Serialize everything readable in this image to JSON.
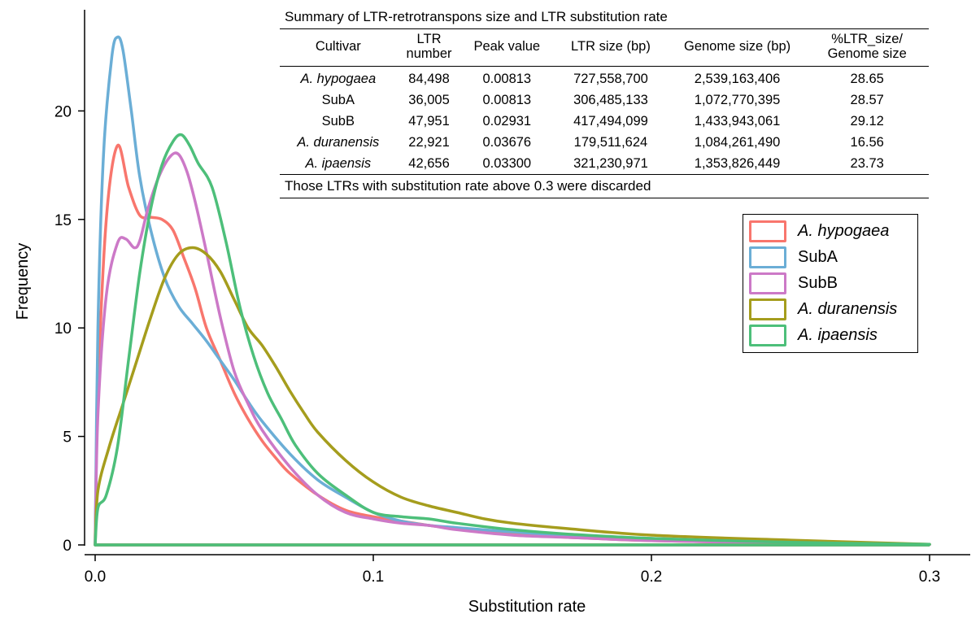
{
  "chart_data": {
    "type": "line",
    "xlabel": "Substitution rate",
    "ylabel": "Frequency",
    "xlim": [
      0,
      0.3
    ],
    "ylim": [
      0,
      25
    ],
    "x_ticks": [
      0.0,
      0.1,
      0.2,
      0.3
    ],
    "x_tick_labels": [
      "0.0",
      "0.1",
      "0.2",
      "0.3"
    ],
    "y_ticks": [
      0,
      5,
      10,
      15,
      20
    ],
    "y_tick_labels": [
      "0",
      "5",
      "10",
      "15",
      "20"
    ],
    "grid": false,
    "legend_position": "right",
    "series": [
      {
        "name": "A. hypogaea",
        "italic": true,
        "color": "#f8766d",
        "x": [
          0,
          0.001,
          0.004,
          0.008,
          0.012,
          0.016,
          0.02,
          0.024,
          0.028,
          0.032,
          0.036,
          0.04,
          0.045,
          0.05,
          0.055,
          0.06,
          0.065,
          0.07,
          0.08,
          0.09,
          0.1,
          0.11,
          0.12,
          0.13,
          0.14,
          0.15,
          0.17,
          0.2,
          0.25,
          0.3
        ],
        "y": [
          0,
          7,
          15,
          18.4,
          16.5,
          15.2,
          15.1,
          15.0,
          14.5,
          13.2,
          11.8,
          10.0,
          8.5,
          7.0,
          5.8,
          4.8,
          4.0,
          3.3,
          2.3,
          1.6,
          1.3,
          1.1,
          0.9,
          0.75,
          0.6,
          0.5,
          0.35,
          0.2,
          0.08,
          0.02
        ]
      },
      {
        "name": "SubA",
        "italic": false,
        "color": "#6baed6",
        "x": [
          0,
          0.001,
          0.003,
          0.006,
          0.008,
          0.01,
          0.013,
          0.016,
          0.02,
          0.025,
          0.03,
          0.035,
          0.04,
          0.045,
          0.05,
          0.055,
          0.06,
          0.07,
          0.08,
          0.09,
          0.1,
          0.11,
          0.12,
          0.13,
          0.15,
          0.17,
          0.2,
          0.25,
          0.3
        ],
        "y": [
          0,
          10,
          18,
          22.5,
          23.4,
          22.8,
          20,
          17,
          14.5,
          12.3,
          11.0,
          10.2,
          9.4,
          8.5,
          7.6,
          6.6,
          5.7,
          4.2,
          3.0,
          2.2,
          1.5,
          1.1,
          0.9,
          0.8,
          0.6,
          0.45,
          0.3,
          0.1,
          0.02
        ]
      },
      {
        "name": "SubB",
        "italic": false,
        "color": "#cc79c7",
        "x": [
          0,
          0.001,
          0.004,
          0.008,
          0.011,
          0.014,
          0.016,
          0.019,
          0.023,
          0.027,
          0.03,
          0.033,
          0.036,
          0.04,
          0.045,
          0.05,
          0.055,
          0.06,
          0.07,
          0.08,
          0.09,
          0.1,
          0.11,
          0.12,
          0.13,
          0.15,
          0.17,
          0.2,
          0.25,
          0.3
        ],
        "y": [
          0,
          6,
          11.5,
          13.9,
          14.1,
          13.7,
          14.0,
          15.5,
          17.0,
          17.9,
          18.0,
          17.2,
          15.8,
          13.5,
          10.5,
          8.0,
          6.5,
          5.3,
          3.6,
          2.3,
          1.5,
          1.2,
          1.0,
          0.9,
          0.7,
          0.45,
          0.35,
          0.2,
          0.08,
          0.02
        ]
      },
      {
        "name": "A. duranensis",
        "italic": true,
        "color": "#a59d1d",
        "x": [
          0,
          0.001,
          0.005,
          0.01,
          0.015,
          0.02,
          0.025,
          0.03,
          0.035,
          0.04,
          0.045,
          0.05,
          0.055,
          0.06,
          0.065,
          0.07,
          0.075,
          0.08,
          0.09,
          0.1,
          0.11,
          0.12,
          0.13,
          0.14,
          0.15,
          0.17,
          0.2,
          0.25,
          0.28,
          0.3
        ],
        "y": [
          0,
          2.5,
          4.5,
          6.5,
          8.5,
          10.5,
          12.3,
          13.4,
          13.7,
          13.4,
          12.6,
          11.3,
          10.0,
          9.2,
          8.2,
          7.1,
          6.1,
          5.2,
          3.9,
          2.9,
          2.2,
          1.8,
          1.5,
          1.2,
          1.0,
          0.75,
          0.45,
          0.22,
          0.1,
          0.03
        ]
      },
      {
        "name": "A. ipaensis",
        "italic": true,
        "color": "#4dbf7a",
        "x": [
          0,
          0.001,
          0.004,
          0.008,
          0.012,
          0.016,
          0.02,
          0.024,
          0.028,
          0.031,
          0.034,
          0.037,
          0.042,
          0.047,
          0.052,
          0.057,
          0.062,
          0.067,
          0.072,
          0.08,
          0.09,
          0.1,
          0.11,
          0.12,
          0.13,
          0.15,
          0.17,
          0.2,
          0.25,
          0.3
        ],
        "y": [
          0,
          1.7,
          2.3,
          4.5,
          8.5,
          12.5,
          15.5,
          17.5,
          18.6,
          18.9,
          18.4,
          17.6,
          16.5,
          14.0,
          11.0,
          8.7,
          7.0,
          5.8,
          4.6,
          3.3,
          2.3,
          1.5,
          1.3,
          1.2,
          1.0,
          0.7,
          0.5,
          0.3,
          0.12,
          0.03
        ]
      }
    ],
    "table": {
      "title": "Summary of LTR-retrotranspons size and LTR substitution rate",
      "headers": [
        "Cultivar",
        "LTR number",
        "Peak value",
        "LTR size (bp)",
        "Genome size (bp)",
        "%LTR_size/ Genome size"
      ],
      "rows": [
        {
          "cells": [
            "A. hypogaea",
            "84,498",
            "0.00813",
            "727,558,700",
            "2,539,163,406",
            "28.65"
          ],
          "italic": true
        },
        {
          "cells": [
            "SubA",
            "36,005",
            "0.00813",
            "306,485,133",
            "1,072,770,395",
            "28.57"
          ],
          "italic": false
        },
        {
          "cells": [
            "SubB",
            "47,951",
            "0.02931",
            "417,494,099",
            "1,433,943,061",
            "29.12"
          ],
          "italic": false
        },
        {
          "cells": [
            "A. duranensis",
            "22,921",
            "0.03676",
            "179,511,624",
            "1,084,261,490",
            "16.56"
          ],
          "italic": true
        },
        {
          "cells": [
            "A. ipaensis",
            "42,656",
            "0.03300",
            "321,230,971",
            "1,353,826,449",
            "23.73"
          ],
          "italic": true
        }
      ],
      "note": "Those LTRs with substitution rate above 0.3 were discarded"
    }
  }
}
